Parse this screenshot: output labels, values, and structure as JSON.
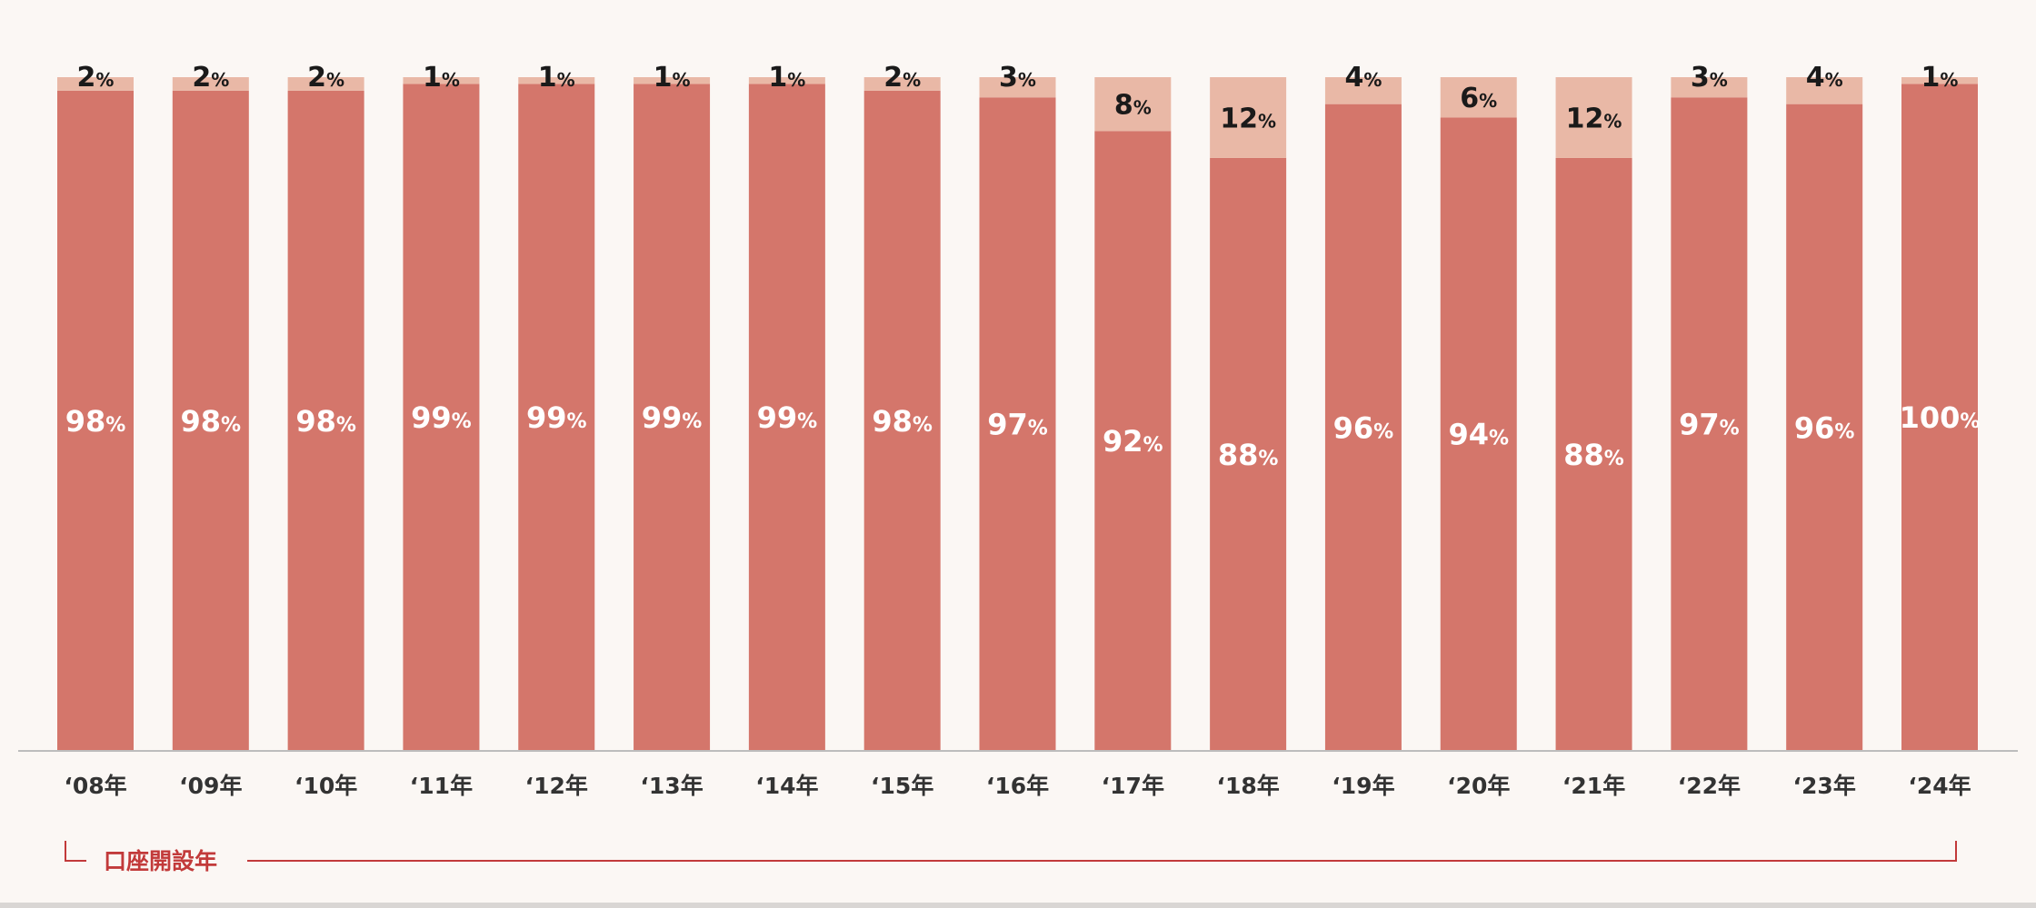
{
  "chart_data": {
    "type": "bar",
    "stacked": true,
    "normalized_to_percent": true,
    "categories": [
      "‘08年",
      "‘09年",
      "‘10年",
      "‘11年",
      "‘12年",
      "‘13年",
      "‘14年",
      "‘15年",
      "‘16年",
      "‘17年",
      "‘18年",
      "‘19年",
      "‘20年",
      "‘21年",
      "‘22年",
      "‘23年",
      "‘24年"
    ],
    "series": [
      {
        "values": [
          98,
          98,
          98,
          99,
          99,
          99,
          99,
          98,
          97,
          92,
          88,
          96,
          94,
          88,
          97,
          96,
          100
        ]
      },
      {
        "values": [
          2,
          2,
          2,
          1,
          1,
          1,
          1,
          2,
          3,
          8,
          12,
          4,
          6,
          12,
          3,
          4,
          1
        ]
      }
    ],
    "percent_symbol": "%",
    "category_axis_label": "口座開設年",
    "ylim": [
      0,
      100
    ],
    "grid": false,
    "legend": "none"
  },
  "colors": {
    "background": "#fbf7f4",
    "primary_segment": "#d4766b",
    "secondary_segment": "#e9b8a6",
    "axis_line": "#bdbdbd",
    "bracket_line": "#c23a3a",
    "bracket_label": "#c23a3a",
    "value_label_on_primary": "#ffffff",
    "value_label_on_secondary": "#1a1a1a",
    "category_label": "#333333"
  }
}
